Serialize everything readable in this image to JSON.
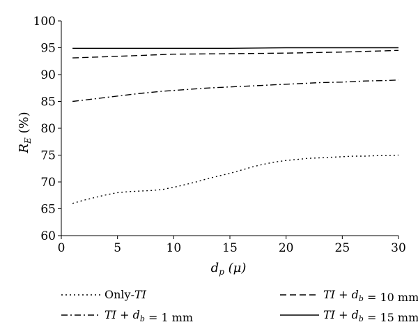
{
  "chart_data": {
    "type": "line",
    "title": "",
    "xlabel": "d_p (μ)",
    "ylabel": "R_E (%)",
    "xlim": [
      0,
      30
    ],
    "ylim": [
      60,
      100
    ],
    "xticks": [
      0,
      5,
      10,
      15,
      20,
      25,
      30
    ],
    "yticks": [
      60,
      65,
      70,
      75,
      80,
      85,
      90,
      95,
      100
    ],
    "grid": false,
    "legend_position": "bottom",
    "series": [
      {
        "name": "Only-TI",
        "style": "dotted",
        "x": [
          1,
          2,
          3,
          4,
          5,
          6,
          7,
          8,
          9,
          10,
          11,
          12,
          13,
          14,
          15,
          16,
          17,
          18,
          19,
          20,
          21,
          22,
          23,
          24,
          25,
          26,
          27,
          28,
          29,
          30
        ],
        "y": [
          66,
          66.6,
          67.1,
          67.6,
          68,
          68.2,
          68.3,
          68.4,
          68.6,
          69,
          69.5,
          70,
          70.6,
          71.1,
          71.6,
          72.2,
          72.8,
          73.3,
          73.7,
          74,
          74.2,
          74.4,
          74.5,
          74.6,
          74.7,
          74.8,
          74.8,
          74.9,
          74.9,
          75
        ]
      },
      {
        "name": "TI + d_b = 1 mm",
        "style": "dashdot",
        "x": [
          1,
          3,
          5,
          7,
          9,
          11,
          13,
          15,
          17,
          19,
          21,
          23,
          25,
          27,
          29,
          30
        ],
        "y": [
          85,
          85.5,
          86,
          86.5,
          86.9,
          87.2,
          87.5,
          87.7,
          87.9,
          88.1,
          88.3,
          88.5,
          88.6,
          88.8,
          88.9,
          89
        ]
      },
      {
        "name": "TI + d_b = 10 mm",
        "style": "dashed",
        "x": [
          1,
          5,
          10,
          15,
          20,
          25,
          30
        ],
        "y": [
          93.1,
          93.4,
          93.8,
          93.9,
          94,
          94.2,
          94.5
        ]
      },
      {
        "name": "TI + d_b = 15 mm",
        "style": "solid",
        "x": [
          1,
          5,
          10,
          15,
          20,
          25,
          30
        ],
        "y": [
          94.9,
          94.9,
          94.9,
          94.9,
          95,
          95,
          95
        ]
      }
    ]
  }
}
